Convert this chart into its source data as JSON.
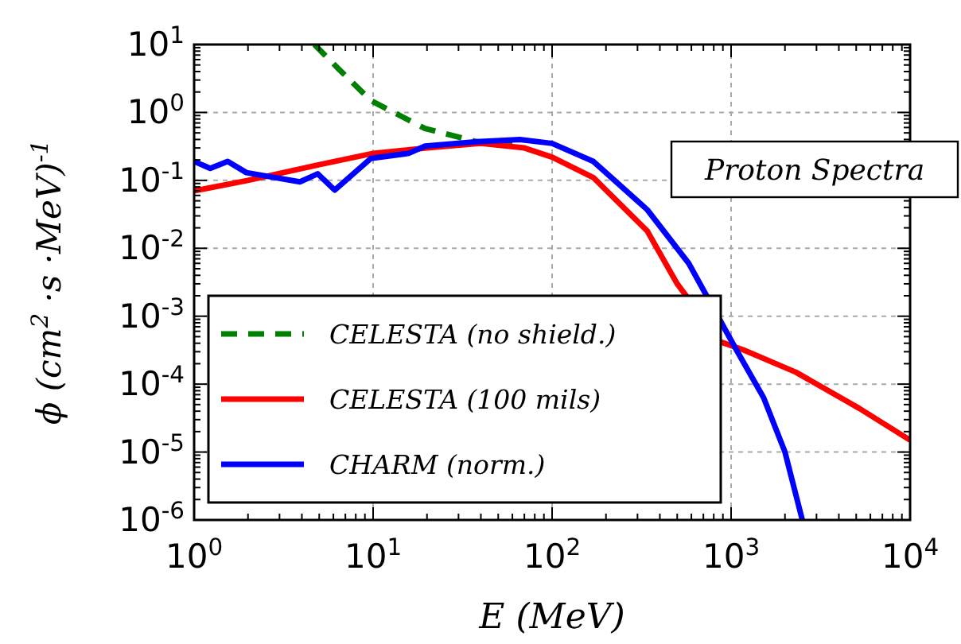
{
  "chart_data": {
    "type": "line",
    "xlabel": "E (MeV)",
    "ylabel": "ϕ (cm$^{2}$ ·s ·MeV)$^{-1}$",
    "annotations": [
      "Proton Spectra"
    ],
    "log": "xy",
    "grid": true,
    "legend": "bottom left",
    "xlim": [
      1,
      10000
    ],
    "ylim": [
      1e-06,
      10
    ],
    "xticks": [
      {
        "value": 1,
        "label": "10$^{0}$"
      },
      {
        "value": 10,
        "label": "10$^{1}$"
      },
      {
        "value": 100,
        "label": "10$^{2}$"
      },
      {
        "value": 1000,
        "label": "10$^{3}$"
      },
      {
        "value": 10000,
        "label": "10$^{4}$"
      }
    ],
    "yticks": [
      {
        "value": 1e-06,
        "label": "10$^{-6}$"
      },
      {
        "value": 1e-05,
        "label": "10$^{-5}$"
      },
      {
        "value": 0.0001,
        "label": "10$^{-4}$"
      },
      {
        "value": 0.001,
        "label": "10$^{-3}$"
      },
      {
        "value": 0.01,
        "label": "10$^{-2}$"
      },
      {
        "value": 0.1,
        "label": "10$^{-1}$"
      },
      {
        "value": 1,
        "label": "10$^{0}$"
      },
      {
        "value": 10,
        "label": "10$^{1}$"
      }
    ],
    "series": [
      {
        "name": "CELESTA (no shield.)",
        "color": "#008000",
        "line_style": "dashed",
        "x": [
          4.7,
          6.4,
          9.7,
          19.5,
          38,
          60
        ],
        "values": [
          10,
          4.4,
          1.5,
          0.58,
          0.37,
          0.35
        ]
      },
      {
        "name": "CELESTA (100 mils)",
        "color": "#ff0000",
        "line_style": "solid",
        "x": [
          1,
          2,
          5,
          10,
          20,
          40,
          70,
          100,
          170,
          340,
          500,
          870,
          1170,
          2300,
          5200,
          10000
        ],
        "values": [
          0.07,
          0.1,
          0.17,
          0.25,
          0.3,
          0.35,
          0.3,
          0.22,
          0.11,
          0.018,
          0.003,
          0.00042,
          0.00032,
          0.00015,
          4.4e-05,
          1.5e-05
        ]
      },
      {
        "name": "CHARM (norm.)",
        "color": "#0000ff",
        "line_style": "solid",
        "x": [
          1,
          1.23,
          1.54,
          1.96,
          3.9,
          4.9,
          6.1,
          9.7,
          15.8,
          19.5,
          38,
          66,
          100,
          170,
          340,
          580,
          1070,
          1520,
          2000,
          2500
        ],
        "values": [
          0.19,
          0.15,
          0.19,
          0.13,
          0.095,
          0.125,
          0.072,
          0.21,
          0.25,
          0.32,
          0.37,
          0.4,
          0.35,
          0.19,
          0.037,
          0.006,
          0.00032,
          6.3e-05,
          1e-05,
          1e-06
        ]
      }
    ]
  }
}
